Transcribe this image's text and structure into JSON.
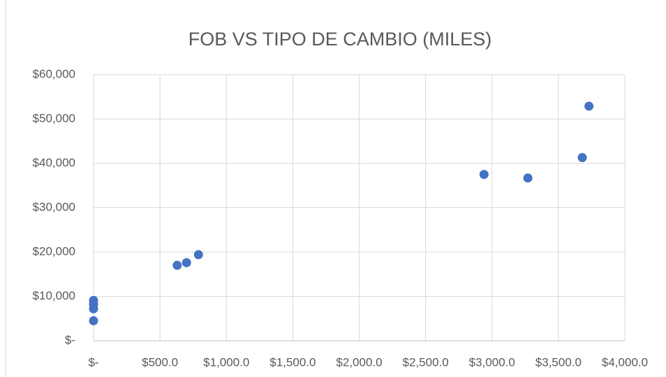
{
  "chart_data": {
    "type": "scatter",
    "title": "FOB VS TIPO DE CAMBIO (MILES)",
    "color": "#4472c4",
    "grid": true,
    "series": [
      {
        "name": "FOB",
        "color": "#4472c4",
        "x": [
          0,
          0,
          0,
          0,
          630,
          700,
          790,
          2940,
          3270,
          3680,
          3730
        ],
        "values": [
          4500,
          7200,
          8200,
          9100,
          17000,
          17600,
          19400,
          37500,
          36700,
          41300,
          52900
        ]
      }
    ],
    "xlim": [
      0,
      4000
    ],
    "xticks": [
      {
        "value": 0,
        "label": "$-"
      },
      {
        "value": 500,
        "label": "$500.0"
      },
      {
        "value": 1000,
        "label": "$1,000.0"
      },
      {
        "value": 1500,
        "label": "$1,500.0"
      },
      {
        "value": 2000,
        "label": "$2,000.0"
      },
      {
        "value": 2500,
        "label": "$2,500.0"
      },
      {
        "value": 3000,
        "label": "$3,000.0"
      },
      {
        "value": 3500,
        "label": "$3,500.0"
      },
      {
        "value": 4000,
        "label": "$4,000.0"
      }
    ],
    "ylim": [
      0,
      60000
    ],
    "yticks": [
      {
        "value": 0,
        "label": "$-"
      },
      {
        "value": 10000,
        "label": "$10,000"
      },
      {
        "value": 20000,
        "label": "$20,000"
      },
      {
        "value": 30000,
        "label": "$30,000"
      },
      {
        "value": 40000,
        "label": "$40,000"
      },
      {
        "value": 50000,
        "label": "$50,000"
      },
      {
        "value": 60000,
        "label": "$60,000"
      }
    ]
  }
}
